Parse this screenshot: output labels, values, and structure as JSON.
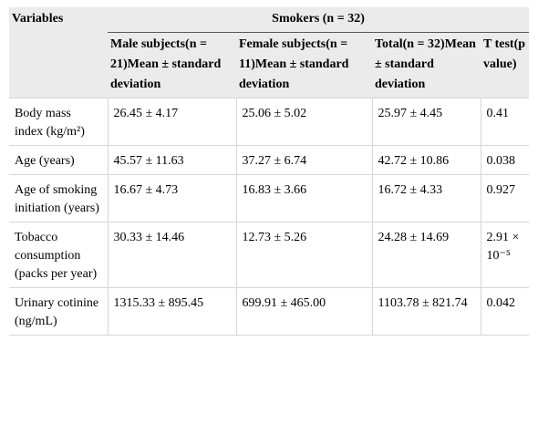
{
  "table": {
    "header": {
      "variables": "Variables",
      "group": "Smokers (n = 32)",
      "columns": [
        "Male subjects(n = 21)Mean ± standard deviation",
        "Female subjects(n = 11)Mean ± standard deviation",
        "Total(n = 32)Mean ± standard deviation",
        "T test(p value)"
      ]
    },
    "rows": [
      [
        "Body mass index (kg/m²)",
        "26.45 ± 4.17",
        "25.06 ± 5.02",
        "25.97 ± 4.45",
        "0.41"
      ],
      [
        "Age (years)",
        "45.57 ± 11.63",
        "37.27 ± 6.74",
        "42.72 ± 10.86",
        "0.038"
      ],
      [
        "Age of smoking initiation (years)",
        "16.67 ± 4.73",
        "16.83 ± 3.66",
        "16.72 ± 4.33",
        "0.927"
      ],
      [
        "Tobacco consumption (packs per year)",
        "30.33 ± 14.46",
        "12.73 ± 5.26",
        "24.28 ± 14.69",
        "2.91 × 10⁻⁵"
      ],
      [
        "Urinary cotinine (ng/mL)",
        "1315.33 ± 895.45",
        "699.91 ± 465.00",
        "1103.78 ± 821.74",
        "0.042"
      ]
    ]
  }
}
